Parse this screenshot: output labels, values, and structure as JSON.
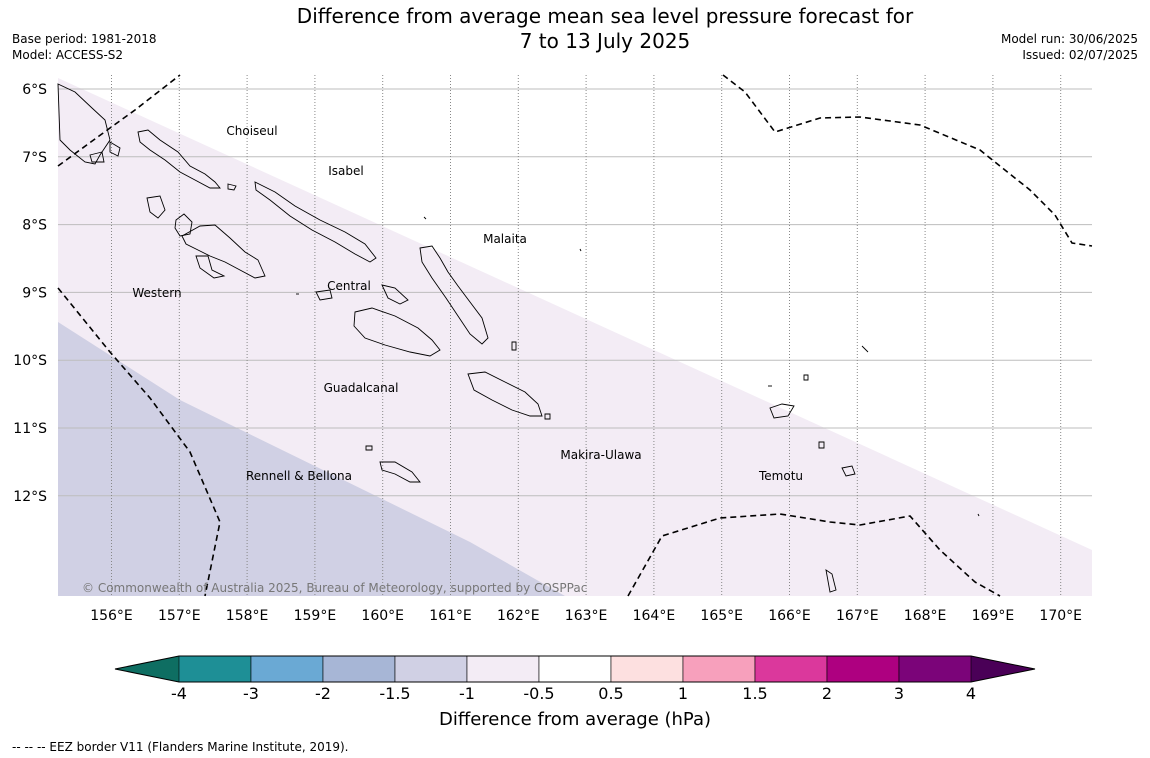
{
  "title": {
    "line1": "Difference from average mean sea level pressure forecast for",
    "line2": "7 to 13 July 2025"
  },
  "meta_left": {
    "base_period": "Base period: 1981-2018",
    "model": "Model: ACCESS-S2"
  },
  "meta_right": {
    "model_run": "Model run: 30/06/2025",
    "issued": "Issued: 02/07/2025"
  },
  "map": {
    "lon_labels": [
      "156°E",
      "157°E",
      "158°E",
      "159°E",
      "160°E",
      "161°E",
      "162°E",
      "163°E",
      "164°E",
      "165°E",
      "166°E",
      "167°E",
      "168°E",
      "169°E",
      "170°E"
    ],
    "lat_labels": [
      "6°S",
      "7°S",
      "8°S",
      "9°S",
      "10°S",
      "11°S",
      "12°S"
    ],
    "regions": [
      "Choiseul",
      "Isabel",
      "Malaita",
      "Western",
      "Central",
      "Guadalcanal",
      "Makira-Ulawa",
      "Rennell & Bellona",
      "Temotu"
    ],
    "copyright": "© Commonwealth of Australia 2025, Bureau of Meteorology, supported by COSPPac"
  },
  "colorbar": {
    "title": "Difference from average (hPa)",
    "ticks": [
      "-4",
      "-3",
      "-2",
      "-1.5",
      "-1",
      "-0.5",
      "0.5",
      "1",
      "1.5",
      "2",
      "3",
      "4"
    ],
    "colors": [
      "#1e8f96",
      "#6aa9d4",
      "#a7b6d6",
      "#d0d0e4",
      "#f3ecf5",
      "#ffffff",
      "#fde0e0",
      "#f7a0bc",
      "#db389c",
      "#ae0080",
      "#7b0479"
    ],
    "extend_low_color": "#0e6e62",
    "extend_high_color": "#4a0057"
  },
  "map_fill_colors": {
    "band_light": "#f3ecf5",
    "band_blue": "#d0d0e4"
  },
  "footnote": "--  --  -- EEZ border V11 (Flanders Marine Institute, 2019)."
}
